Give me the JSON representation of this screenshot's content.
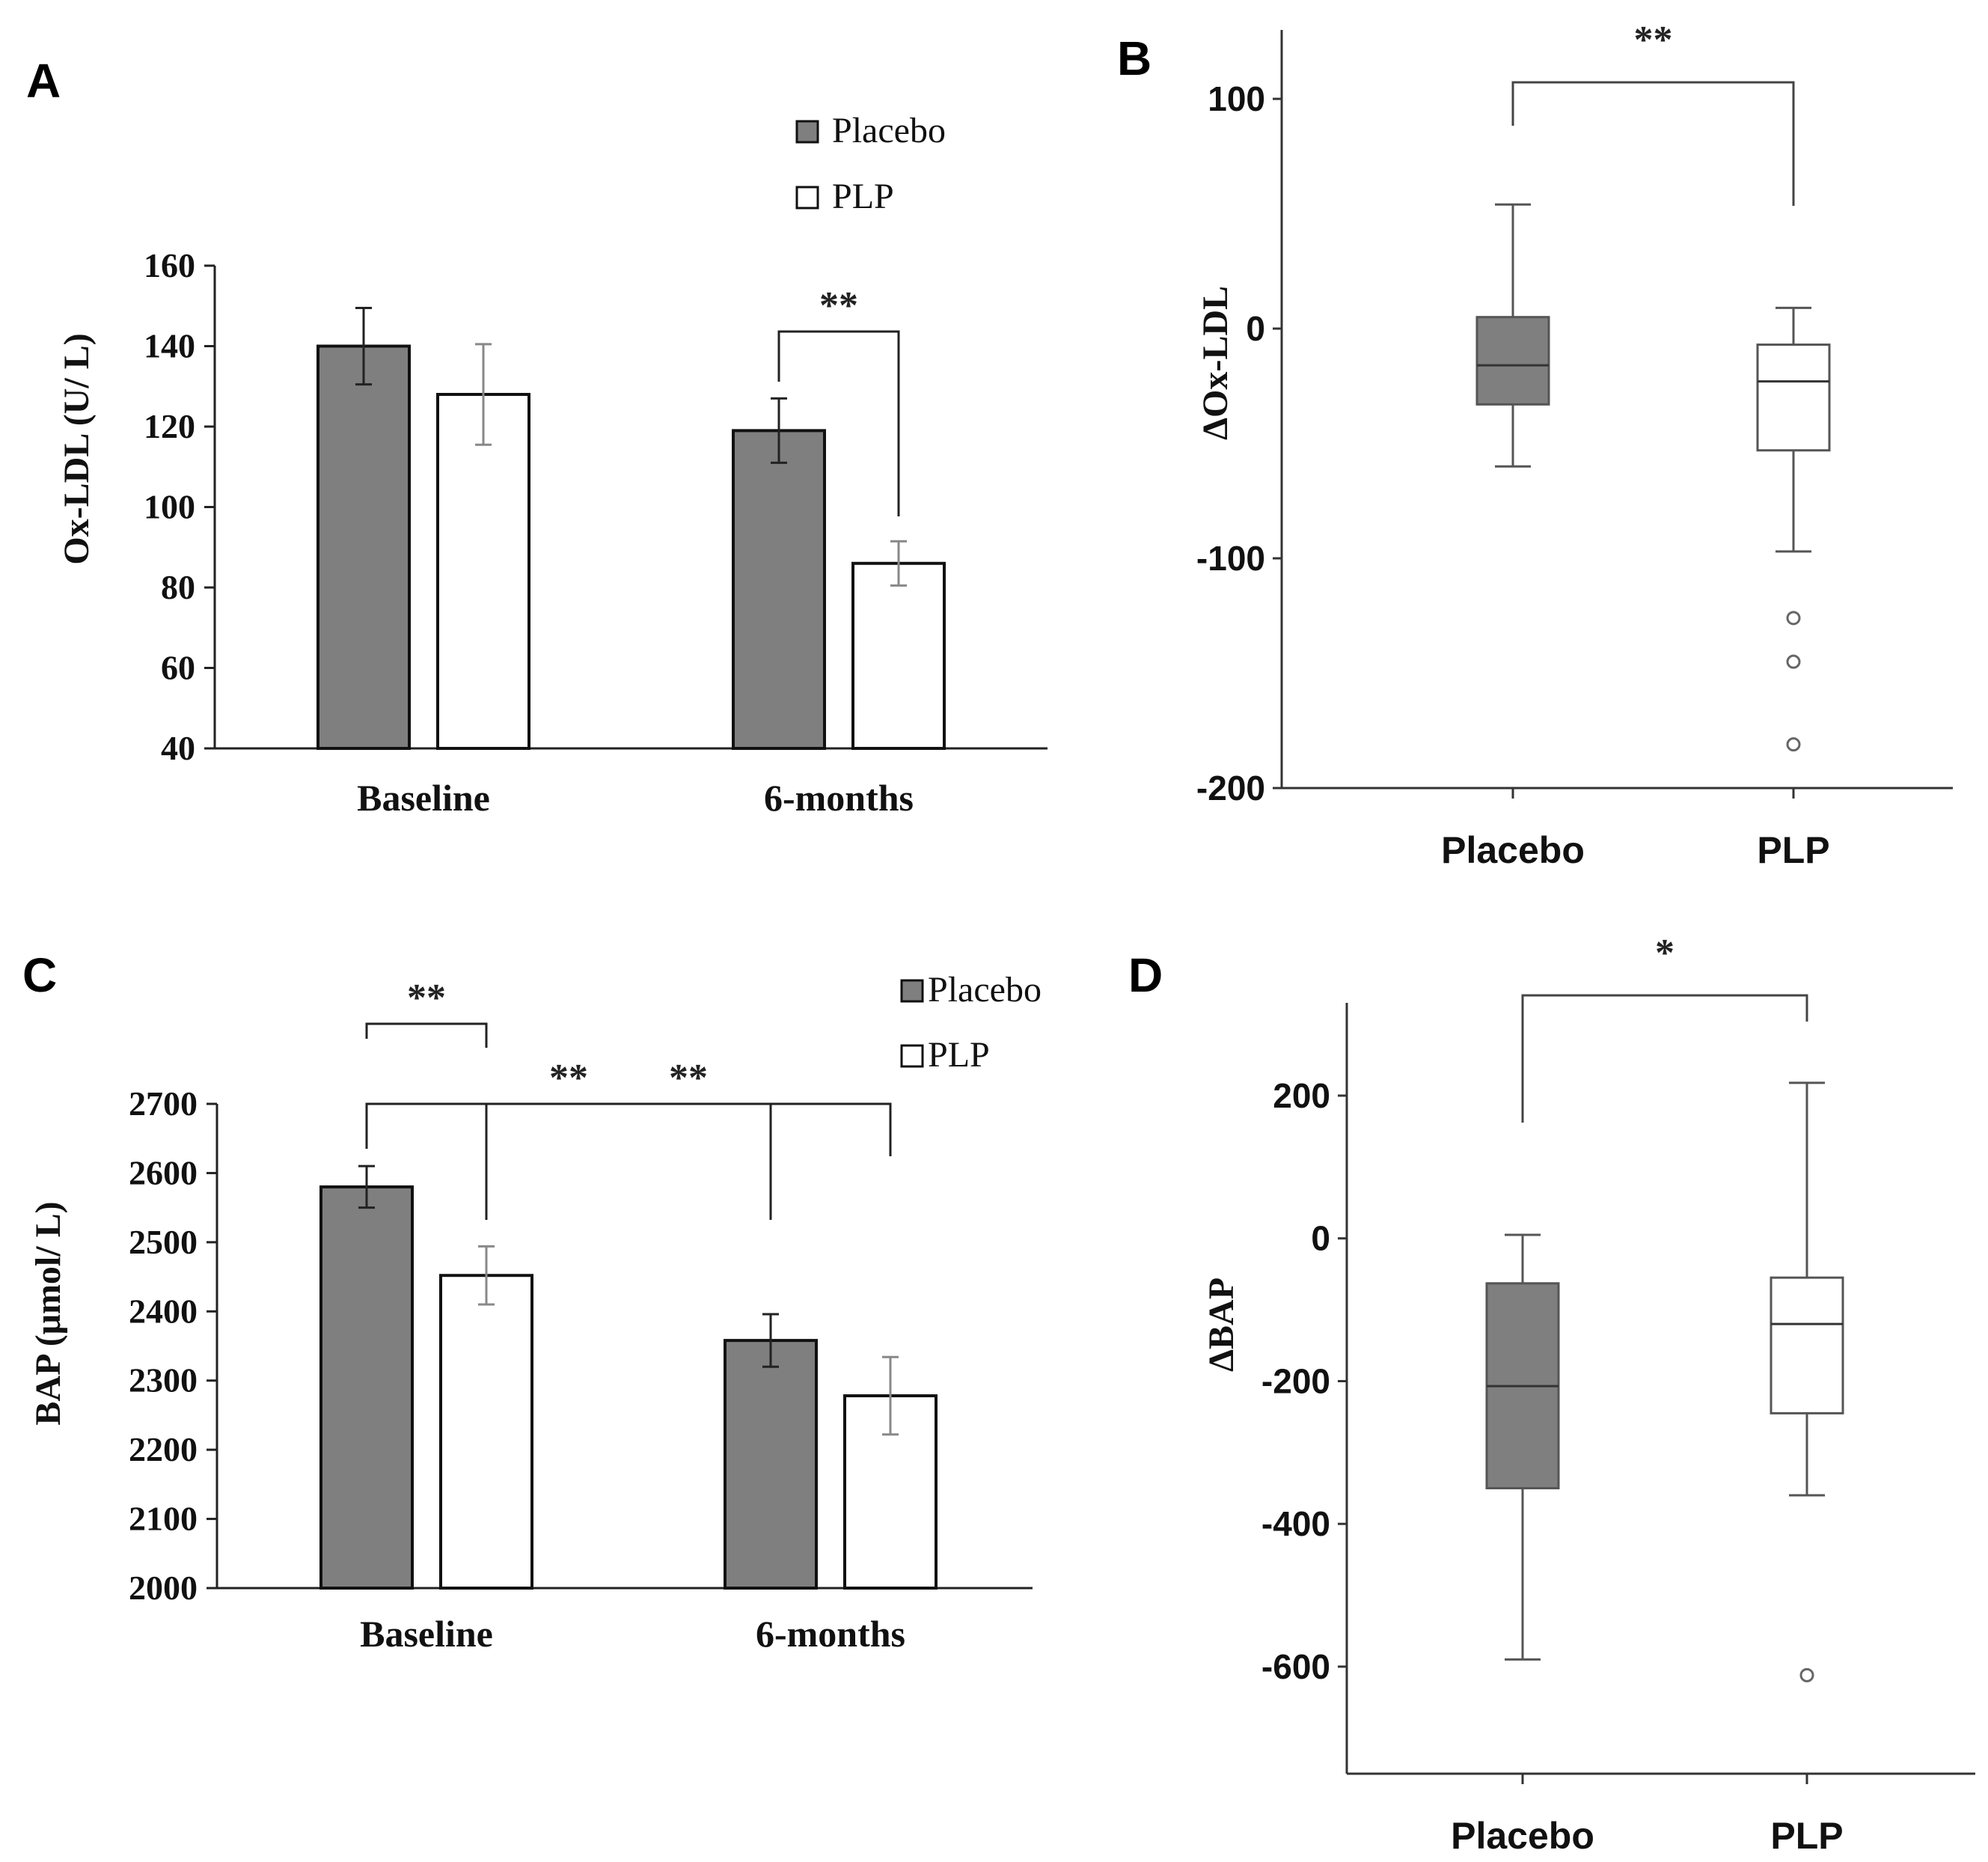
{
  "colors": {
    "placebo": "#7f7f7f",
    "plp": "#ffffff",
    "stroke": "#111111",
    "box_stroke": "#555555"
  },
  "chart_data": [
    {
      "panel": "A",
      "type": "bar",
      "ylabel": "Ox-LDL (U/ L)",
      "categories": [
        "Baseline",
        "6-months"
      ],
      "ylim": [
        40,
        160
      ],
      "yticks": [
        40,
        60,
        80,
        100,
        120,
        140,
        160
      ],
      "legend": {
        "position": "top-right",
        "entries": [
          "Placebo",
          "PLP"
        ]
      },
      "series": [
        {
          "name": "Placebo",
          "values": [
            140,
            119
          ],
          "errors": [
            9.5,
            8
          ]
        },
        {
          "name": "PLP",
          "values": [
            128,
            86
          ],
          "errors": [
            12.5,
            5.5
          ]
        }
      ],
      "significance": [
        {
          "label": "**",
          "from": [
            1,
            0
          ],
          "to": [
            1,
            1
          ]
        }
      ]
    },
    {
      "panel": "B",
      "type": "box",
      "ylabel": "ΔOx-LDL",
      "categories": [
        "Placebo",
        "PLP"
      ],
      "ylim": [
        -200,
        130
      ],
      "yticks": [
        -200,
        -100,
        0,
        100
      ],
      "boxes": [
        {
          "name": "Placebo",
          "whisker_low": -60,
          "q1": -33,
          "median": -16,
          "q3": 5,
          "whisker_high": 54,
          "outliers": []
        },
        {
          "name": "PLP",
          "whisker_low": -97,
          "q1": -53,
          "median": -23,
          "q3": -7,
          "whisker_high": 9,
          "outliers": [
            -126,
            -145,
            -181
          ]
        }
      ],
      "significance": [
        {
          "label": "**",
          "between": [
            "Placebo",
            "PLP"
          ]
        }
      ]
    },
    {
      "panel": "C",
      "type": "bar",
      "ylabel": "BAP (μmol/ L)",
      "categories": [
        "Baseline",
        "6-months"
      ],
      "ylim": [
        2000,
        2700
      ],
      "yticks": [
        2000,
        2100,
        2200,
        2300,
        2400,
        2500,
        2600,
        2700
      ],
      "legend": {
        "position": "top-right",
        "entries": [
          "Placebo",
          "PLP"
        ]
      },
      "series": [
        {
          "name": "Placebo",
          "values": [
            2580,
            2358
          ],
          "errors": [
            30,
            38
          ]
        },
        {
          "name": "PLP",
          "values": [
            2452,
            2278
          ],
          "errors": [
            42,
            56
          ]
        }
      ],
      "significance": [
        {
          "label": "**",
          "from": [
            0,
            0
          ],
          "to": [
            1,
            0
          ]
        },
        {
          "label": "**",
          "from": [
            0,
            0
          ],
          "to": [
            0,
            1
          ]
        },
        {
          "label": "**",
          "from": [
            0,
            1
          ],
          "to": [
            1,
            1
          ]
        }
      ]
    },
    {
      "panel": "D",
      "type": "box",
      "ylabel": "ΔBAP",
      "categories": [
        "Placebo",
        "PLP"
      ],
      "ylim": [
        -750,
        330
      ],
      "yticks": [
        -600,
        -400,
        -200,
        0,
        200
      ],
      "boxes": [
        {
          "name": "Placebo",
          "whisker_low": -590,
          "q1": -350,
          "median": -207,
          "q3": -63,
          "whisker_high": 5,
          "outliers": []
        },
        {
          "name": "PLP",
          "whisker_low": -360,
          "q1": -245,
          "median": -120,
          "q3": -55,
          "whisker_high": 218,
          "outliers": [
            -612
          ]
        }
      ],
      "significance": [
        {
          "label": "*",
          "between": [
            "Placebo",
            "PLP"
          ]
        }
      ]
    }
  ]
}
